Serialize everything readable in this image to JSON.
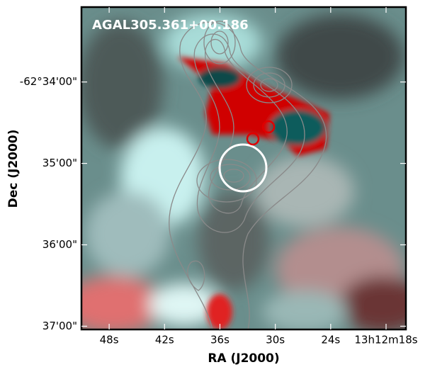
{
  "chart_data": {
    "type": "image",
    "title": "AGAL305.361+00.186",
    "xlabel": "RA (J2000)",
    "ylabel": "Dec (J2000)",
    "xlim": [
      51,
      15.85
    ],
    "xticks": [
      {
        "value": 48,
        "label": "48s"
      },
      {
        "value": 42,
        "label": "42s"
      },
      {
        "value": 36,
        "label": "36s"
      },
      {
        "value": 30,
        "label": "30s"
      },
      {
        "value": 24,
        "label": "24s"
      },
      {
        "value": 18,
        "label": "13h12m18s"
      }
    ],
    "ylim": [
      37.04,
      33.08
    ],
    "yticks": [
      {
        "value": 34,
        "label": "-62°34'00\""
      },
      {
        "value": 35,
        "label": "35'00\""
      },
      {
        "value": 36,
        "label": "36'00\""
      },
      {
        "value": 37,
        "label": "37'00\""
      }
    ]
  }
}
